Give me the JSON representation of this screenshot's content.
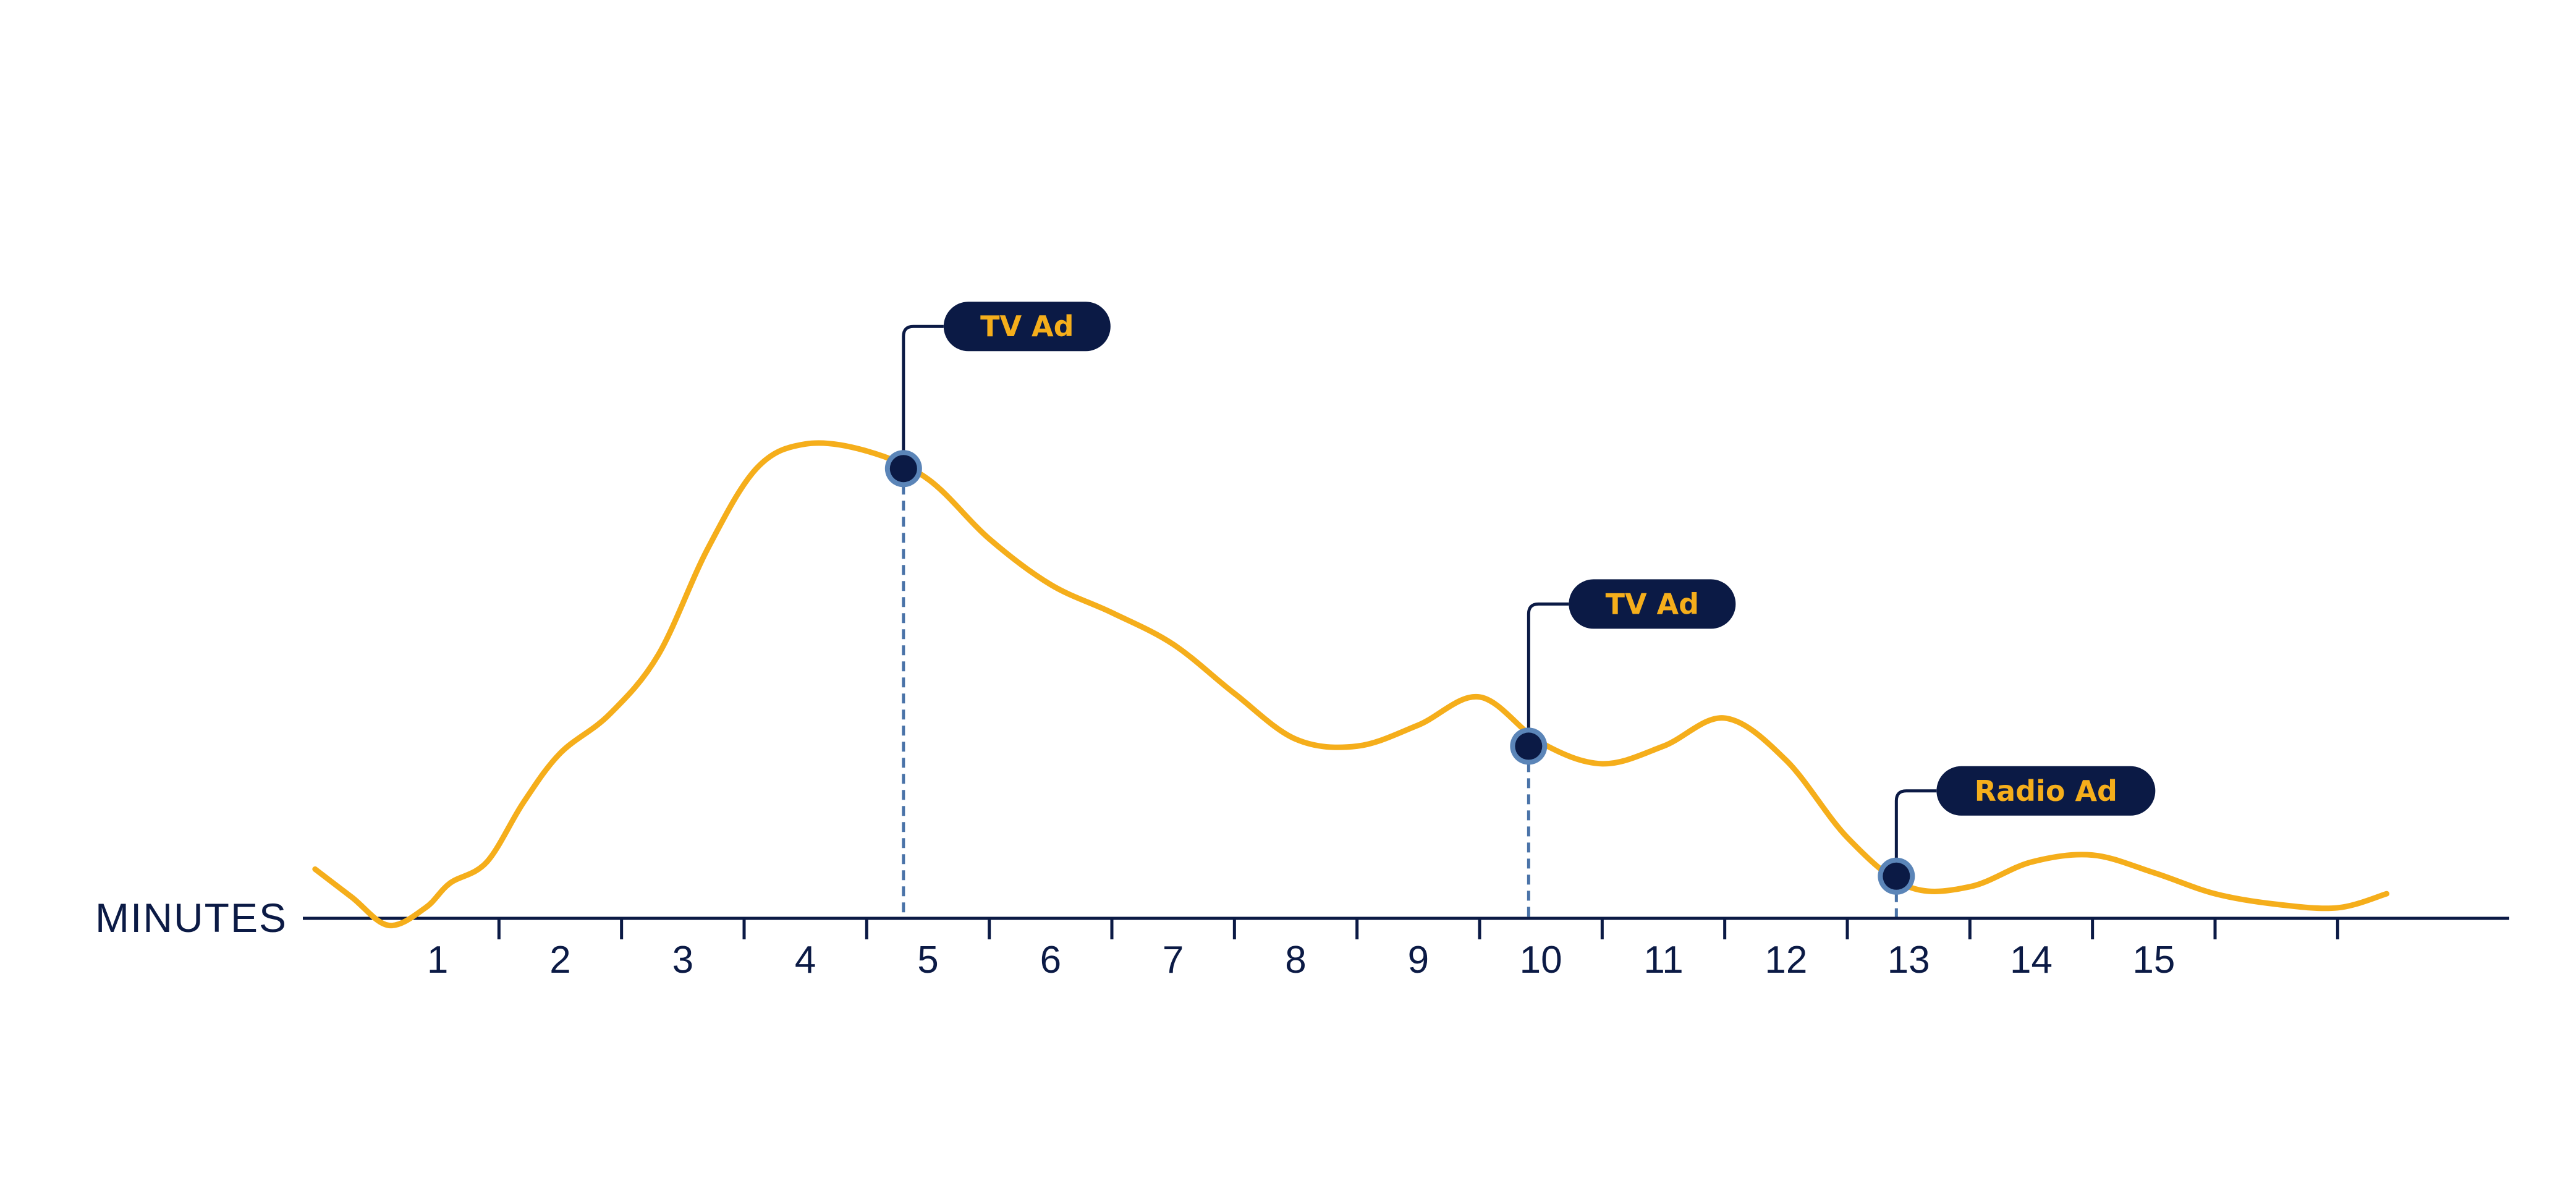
{
  "colors": {
    "line": "#f5ae1b",
    "navy": "#0b1a45",
    "marker_ring": "#5b85b8",
    "guide": "#4a73a8",
    "callout_text": "#f5ae1b"
  },
  "chart_data": {
    "type": "line",
    "title": "",
    "xlabel": "MINUTES",
    "ylabel": "",
    "xlim": [
      -1.1,
      16.9
    ],
    "ylim": [
      -1,
      14
    ],
    "grid": false,
    "legend": "none",
    "tick_positions": [
      0.5,
      1.5,
      2.5,
      3.5,
      4.5,
      5.5,
      6.5,
      7.5,
      8.5,
      9.5,
      10.5,
      11.5,
      12.5,
      13.5,
      14.5,
      15.5
    ],
    "tick_labels": [
      {
        "x": 0.0,
        "label": "1"
      },
      {
        "x": 1.0,
        "label": "2"
      },
      {
        "x": 2.0,
        "label": "3"
      },
      {
        "x": 3.0,
        "label": "4"
      },
      {
        "x": 4.0,
        "label": "5"
      },
      {
        "x": 5.0,
        "label": "6"
      },
      {
        "x": 6.0,
        "label": "7"
      },
      {
        "x": 7.0,
        "label": "8"
      },
      {
        "x": 8.0,
        "label": "9"
      },
      {
        "x": 9.0,
        "label": "10"
      },
      {
        "x": 10.0,
        "label": "11"
      },
      {
        "x": 11.0,
        "label": "12"
      },
      {
        "x": 12.0,
        "label": "13"
      },
      {
        "x": 13.0,
        "label": "14"
      },
      {
        "x": 14.0,
        "label": "15"
      }
    ],
    "series": [
      {
        "values": [
          [
            -1.0,
            1.4
          ],
          [
            -0.7,
            0.6
          ],
          [
            -0.4,
            -0.2
          ],
          [
            -0.1,
            0.3
          ],
          [
            0.1,
            1.0
          ],
          [
            0.4,
            1.6
          ],
          [
            0.7,
            3.3
          ],
          [
            1.0,
            4.7
          ],
          [
            1.4,
            5.8
          ],
          [
            1.8,
            7.5
          ],
          [
            2.2,
            10.5
          ],
          [
            2.6,
            12.8
          ],
          [
            3.0,
            13.5
          ],
          [
            3.5,
            13.3
          ],
          [
            4.0,
            12.5
          ],
          [
            4.5,
            10.8
          ],
          [
            5.0,
            9.5
          ],
          [
            5.5,
            8.7
          ],
          [
            6.0,
            7.8
          ],
          [
            6.5,
            6.4
          ],
          [
            7.0,
            5.1
          ],
          [
            7.5,
            4.9
          ],
          [
            8.0,
            5.5
          ],
          [
            8.5,
            6.3
          ],
          [
            9.0,
            5.0
          ],
          [
            9.5,
            4.4
          ],
          [
            10.0,
            4.9
          ],
          [
            10.5,
            5.7
          ],
          [
            11.0,
            4.5
          ],
          [
            11.5,
            2.3
          ],
          [
            12.0,
            0.9
          ],
          [
            12.5,
            0.9
          ],
          [
            13.0,
            1.6
          ],
          [
            13.5,
            1.8
          ],
          [
            14.0,
            1.3
          ],
          [
            14.5,
            0.7
          ],
          [
            15.0,
            0.4
          ],
          [
            15.5,
            0.3
          ],
          [
            15.9,
            0.7
          ]
        ]
      }
    ],
    "annotations": [
      {
        "x": 3.8,
        "y": 12.8,
        "label": "TV Ad"
      },
      {
        "x": 8.9,
        "y": 4.9,
        "label": "TV Ad"
      },
      {
        "x": 11.9,
        "y": 1.2,
        "label": "Radio Ad"
      }
    ]
  }
}
